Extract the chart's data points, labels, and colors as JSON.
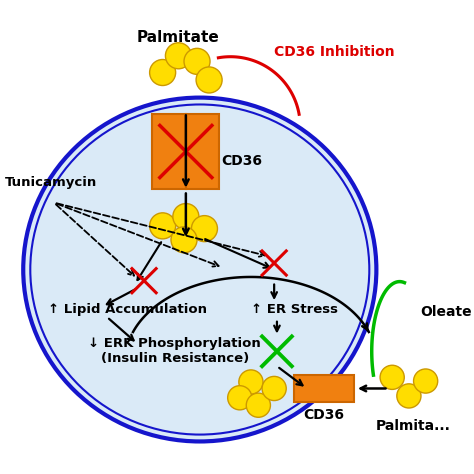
{
  "bg_color": "#ffffff",
  "cell_color": "#daeaf7",
  "cell_border_color": "#1515cc",
  "orange_color": "#f08010",
  "yellow_color": "#ffdd00",
  "yellow_edge": "#cc9900",
  "red_color": "#dd0000",
  "green_color": "#00bb00",
  "black": "#000000",
  "labels": {
    "palmitate_top": "Palmitate",
    "cd36_inhibition": "CD36 Inhibition",
    "cd36_top": "CD36",
    "tunicamycin": "Tunicamycin",
    "lipid_acc": "↑ Lipid Accumulation",
    "erk": "↓ ERK Phosphorylation\n(Insulin Resistance)",
    "er_stress": "↑ ER Stress",
    "oleate": "Oleate",
    "cd36_bottom": "CD36",
    "palmitate_bottom": "Palmita..."
  }
}
